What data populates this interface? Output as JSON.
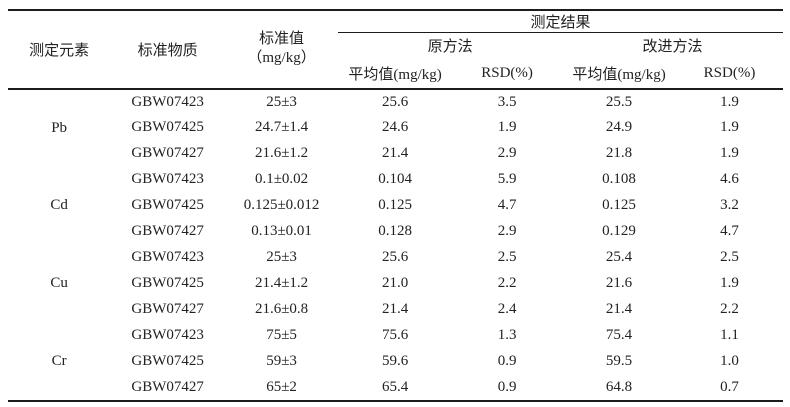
{
  "colors": {
    "line": "#1c1c1c",
    "text": "#222222",
    "background": "#ffffff"
  },
  "table": {
    "header": {
      "element": "测定元素",
      "material": "标准物质",
      "standard_line1": "标准值",
      "standard_line2": "（mg/kg）",
      "results": "测定结果",
      "original_method": "原方法",
      "improved_method": "改进方法",
      "sub_mean": "平均值(mg/kg)",
      "sub_rsd": "RSD(%)"
    },
    "groups": [
      {
        "element": "Pb",
        "rows": [
          {
            "material": "GBW07423",
            "standard": "25±3",
            "orig_mean": "25.6",
            "orig_rsd": "3.5",
            "impr_mean": "25.5",
            "impr_rsd": "1.9"
          },
          {
            "material": "GBW07425",
            "standard": "24.7±1.4",
            "orig_mean": "24.6",
            "orig_rsd": "1.9",
            "impr_mean": "24.9",
            "impr_rsd": "1.9"
          },
          {
            "material": "GBW07427",
            "standard": "21.6±1.2",
            "orig_mean": "21.4",
            "orig_rsd": "2.9",
            "impr_mean": "21.8",
            "impr_rsd": "1.9"
          }
        ]
      },
      {
        "element": "Cd",
        "rows": [
          {
            "material": "GBW07423",
            "standard": "0.1±0.02",
            "orig_mean": "0.104",
            "orig_rsd": "5.9",
            "impr_mean": "0.108",
            "impr_rsd": "4.6"
          },
          {
            "material": "GBW07425",
            "standard": "0.125±0.012",
            "orig_mean": "0.125",
            "orig_rsd": "4.7",
            "impr_mean": "0.125",
            "impr_rsd": "3.2"
          },
          {
            "material": "GBW07427",
            "standard": "0.13±0.01",
            "orig_mean": "0.128",
            "orig_rsd": "2.9",
            "impr_mean": "0.129",
            "impr_rsd": "4.7"
          }
        ]
      },
      {
        "element": "Cu",
        "rows": [
          {
            "material": "GBW07423",
            "standard": "25±3",
            "orig_mean": "25.6",
            "orig_rsd": "2.5",
            "impr_mean": "25.4",
            "impr_rsd": "2.5"
          },
          {
            "material": "GBW07425",
            "standard": "21.4±1.2",
            "orig_mean": "21.0",
            "orig_rsd": "2.2",
            "impr_mean": "21.6",
            "impr_rsd": "1.9"
          },
          {
            "material": "GBW07427",
            "standard": "21.6±0.8",
            "orig_mean": "21.4",
            "orig_rsd": "2.4",
            "impr_mean": "21.4",
            "impr_rsd": "2.2"
          }
        ]
      },
      {
        "element": "Cr",
        "rows": [
          {
            "material": "GBW07423",
            "standard": "75±5",
            "orig_mean": "75.6",
            "orig_rsd": "1.3",
            "impr_mean": "75.4",
            "impr_rsd": "1.1"
          },
          {
            "material": "GBW07425",
            "standard": "59±3",
            "orig_mean": "59.6",
            "orig_rsd": "0.9",
            "impr_mean": "59.5",
            "impr_rsd": "1.0"
          },
          {
            "material": "GBW07427",
            "standard": "65±2",
            "orig_mean": "65.4",
            "orig_rsd": "0.9",
            "impr_mean": "64.8",
            "impr_rsd": "0.7"
          }
        ]
      }
    ]
  }
}
